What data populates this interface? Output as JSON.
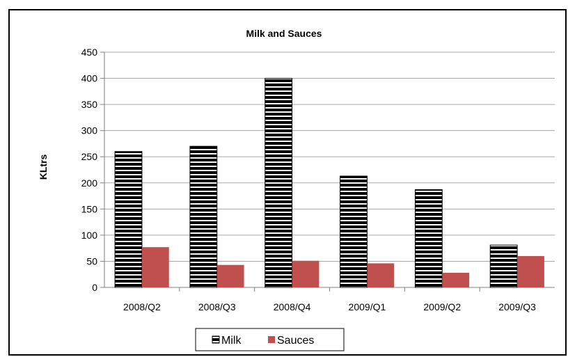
{
  "chart_data": {
    "type": "bar",
    "title": "Milk and Sauces",
    "xlabel": "",
    "ylabel": "KLtrs",
    "categories": [
      "2008/Q2",
      "2008/Q3",
      "2008/Q4",
      "2009/Q1",
      "2009/Q2",
      "2009/Q3"
    ],
    "series": [
      {
        "name": "Milk",
        "values": [
          260,
          270,
          400,
          213,
          187,
          81
        ],
        "color": "#000000",
        "pattern": "horizontal-stripes"
      },
      {
        "name": "Sauces",
        "values": [
          77,
          43,
          51,
          46,
          28,
          60
        ],
        "color": "#c0504d"
      }
    ],
    "ylim": [
      0,
      450
    ],
    "yticks": [
      0,
      50,
      100,
      150,
      200,
      250,
      300,
      350,
      400,
      450
    ],
    "grid": true,
    "legend_position": "bottom"
  }
}
